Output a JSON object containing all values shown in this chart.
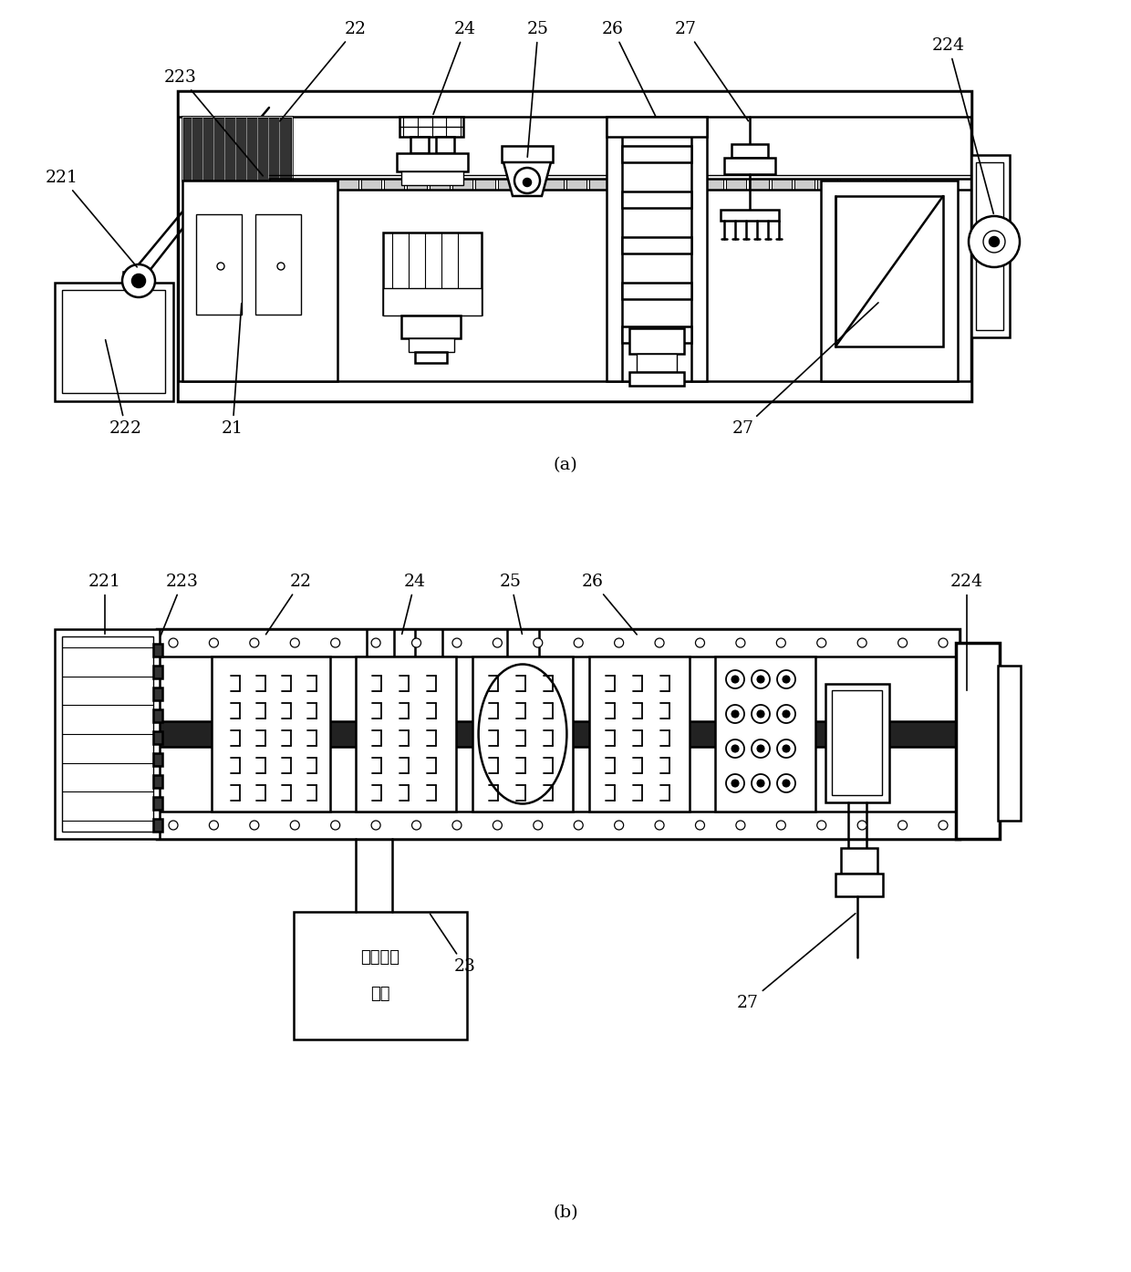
{
  "bg_color": "#ffffff",
  "line_color": "#000000",
  "fig_width": 12.4,
  "fig_height": 13.95,
  "label_a": "(a)",
  "label_b": "(b)"
}
